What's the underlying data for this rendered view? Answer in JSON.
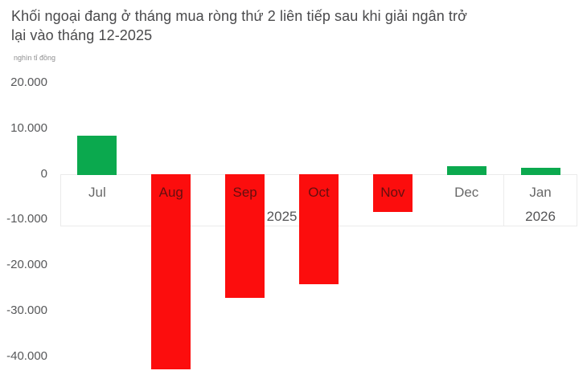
{
  "header": {
    "title": "Khối ngoại đang ở tháng mua ròng thứ 2 liên tiếp sau khi giải ngân trở lại vào tháng 12-2025"
  },
  "chart_data": {
    "type": "bar",
    "title": "Khối ngoại đang ở tháng mua ròng thứ 2 liên tiếp sau khi giải ngân trở lại vào tháng 12-2025",
    "ylabel": "nghìn tỉ đồng",
    "xlabel": "",
    "categories": [
      "Jul",
      "Aug",
      "Sep",
      "Oct",
      "Nov",
      "Dec",
      "Jan"
    ],
    "values": [
      8400,
      -43000,
      -27300,
      -24200,
      -8400,
      1700,
      1400
    ],
    "year_groups": [
      {
        "label": "2025",
        "span": 6
      },
      {
        "label": "2026",
        "span": 1
      }
    ],
    "y_tick_labels": [
      "20.000",
      "10.000",
      "0",
      "-10.000",
      "-20.000",
      "-30.000",
      "-40.000"
    ],
    "y_tick_values": [
      20000,
      10000,
      0,
      -10000,
      -20000,
      -30000,
      -40000
    ],
    "ylim": [
      -47500,
      21500
    ],
    "grid": false,
    "legend": "none",
    "colors": {
      "positive": "#0ba94e",
      "negative": "#fc0d0d",
      "axis_border": "#ebebeb",
      "label": "#545456"
    }
  }
}
